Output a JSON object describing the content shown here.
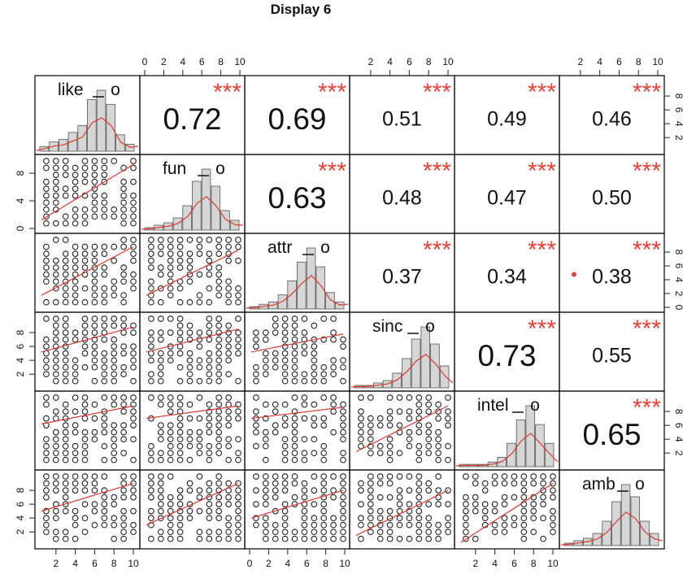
{
  "title": "Display 6",
  "chart_data": {
    "type": "scatter-matrix",
    "variables": [
      "like",
      "fun",
      "attr",
      "sinc",
      "intel",
      "amb"
    ],
    "histogram_marker": "o",
    "axis_ticks": {
      "top_left_to_right": [
        null,
        [
          "0",
          "2",
          "4",
          "6",
          "8",
          "10"
        ],
        null,
        [
          "2",
          "4",
          "6",
          "8",
          "10"
        ],
        null,
        [
          "2",
          "4",
          "6",
          "8",
          "10"
        ]
      ],
      "bottom_left_to_right": [
        [
          "2",
          "4",
          "6",
          "8",
          "10"
        ],
        null,
        [
          "0",
          "2",
          "4",
          "6",
          "8",
          "10"
        ],
        null,
        [
          "2",
          "4",
          "6",
          "8",
          "10"
        ],
        null
      ],
      "left_top_to_bottom": [
        null,
        [
          "0",
          "4",
          "8"
        ],
        null,
        [
          "2",
          "4",
          "6",
          "8"
        ],
        null,
        [
          "2",
          "4",
          "6",
          "8"
        ]
      ],
      "right_top_to_bottom": [
        [
          "2",
          "4",
          "6",
          "8"
        ],
        null,
        [
          "0",
          "2",
          "4",
          "6",
          "8"
        ],
        null,
        [
          "2",
          "4",
          "6",
          "8"
        ],
        null
      ]
    },
    "correlations": [
      {
        "row": 0,
        "col": 1,
        "value": "0.72",
        "stars": "***"
      },
      {
        "row": 0,
        "col": 2,
        "value": "0.69",
        "stars": "***"
      },
      {
        "row": 0,
        "col": 3,
        "value": "0.51",
        "stars": "***"
      },
      {
        "row": 0,
        "col": 4,
        "value": "0.49",
        "stars": "***"
      },
      {
        "row": 0,
        "col": 5,
        "value": "0.46",
        "stars": "***"
      },
      {
        "row": 1,
        "col": 2,
        "value": "0.63",
        "stars": "***"
      },
      {
        "row": 1,
        "col": 3,
        "value": "0.48",
        "stars": "***"
      },
      {
        "row": 1,
        "col": 4,
        "value": "0.47",
        "stars": "***"
      },
      {
        "row": 1,
        "col": 5,
        "value": "0.50",
        "stars": "***"
      },
      {
        "row": 2,
        "col": 3,
        "value": "0.37",
        "stars": "***"
      },
      {
        "row": 2,
        "col": 4,
        "value": "0.34",
        "stars": "***"
      },
      {
        "row": 2,
        "col": 5,
        "value": "0.38",
        "stars": "***",
        "dot": true
      },
      {
        "row": 3,
        "col": 4,
        "value": "0.73",
        "stars": "***"
      },
      {
        "row": 3,
        "col": 5,
        "value": "0.55",
        "stars": "***"
      },
      {
        "row": 4,
        "col": 5,
        "value": "0.65",
        "stars": "***"
      }
    ],
    "histograms": [
      {
        "variable": "like",
        "x": [
          1,
          2,
          3,
          4,
          5,
          6,
          7,
          8,
          9,
          10
        ],
        "counts": [
          2,
          4,
          5,
          8,
          11,
          22,
          26,
          20,
          7,
          3
        ],
        "peak_bars": 17
      },
      {
        "variable": "fun",
        "x": [
          1,
          2,
          3,
          4,
          5,
          6,
          7,
          8,
          9,
          10
        ],
        "counts": [
          1,
          2,
          3,
          5,
          10,
          20,
          25,
          18,
          8,
          4
        ],
        "peak_bars": 17
      },
      {
        "variable": "attr",
        "x": [
          1,
          2,
          3,
          4,
          5,
          6,
          7,
          8,
          9,
          10
        ],
        "counts": [
          1,
          2,
          3,
          6,
          12,
          20,
          26,
          18,
          7,
          3
        ],
        "peak_bars": 17
      },
      {
        "variable": "sinc",
        "x": [
          1,
          2,
          3,
          4,
          5,
          6,
          7,
          8,
          9,
          10
        ],
        "counts": [
          1,
          1,
          2,
          3,
          6,
          12,
          20,
          25,
          18,
          9
        ],
        "peak_bars": 17
      },
      {
        "variable": "intel",
        "x": [
          1,
          2,
          3,
          4,
          5,
          6,
          7,
          8,
          9,
          10
        ],
        "counts": [
          1,
          1,
          1,
          2,
          4,
          10,
          20,
          26,
          18,
          10
        ],
        "peak_bars": 17
      },
      {
        "variable": "amb",
        "x": [
          1,
          2,
          3,
          4,
          5,
          6,
          7,
          8,
          9,
          10
        ],
        "counts": [
          1,
          2,
          3,
          5,
          10,
          18,
          25,
          20,
          10,
          5
        ],
        "peak_bars": 17
      }
    ],
    "regression_lines": [
      {
        "row": 1,
        "col": 0,
        "y0": 1.5,
        "y1": 9.5
      },
      {
        "row": 2,
        "col": 0,
        "y0": 2.0,
        "y1": 9.0
      },
      {
        "row": 2,
        "col": 1,
        "y0": 2.0,
        "y1": 8.5
      },
      {
        "row": 3,
        "col": 0,
        "y0": 5.2,
        "y1": 8.8
      },
      {
        "row": 3,
        "col": 1,
        "y0": 5.2,
        "y1": 8.5
      },
      {
        "row": 3,
        "col": 2,
        "y0": 5.2,
        "y1": 7.8
      },
      {
        "row": 4,
        "col": 0,
        "y0": 6.2,
        "y1": 8.8
      },
      {
        "row": 4,
        "col": 1,
        "y0": 7.0,
        "y1": 8.8
      },
      {
        "row": 4,
        "col": 2,
        "y0": 7.0,
        "y1": 8.6
      },
      {
        "row": 4,
        "col": 3,
        "y0": 2.2,
        "y1": 8.8
      },
      {
        "row": 5,
        "col": 0,
        "y0": 5.0,
        "y1": 9.0
      },
      {
        "row": 5,
        "col": 1,
        "y0": 3.0,
        "y1": 9.0
      },
      {
        "row": 5,
        "col": 2,
        "y0": 4.0,
        "y1": 8.0
      },
      {
        "row": 5,
        "col": 3,
        "y0": 1.5,
        "y1": 8.0
      },
      {
        "row": 5,
        "col": 4,
        "y0": 0.5,
        "y1": 9.0
      }
    ],
    "colors": {
      "stars": "#e0433a",
      "fit_line": "#d93a32",
      "bars": "#d6d6d6",
      "border": "#000000"
    }
  }
}
